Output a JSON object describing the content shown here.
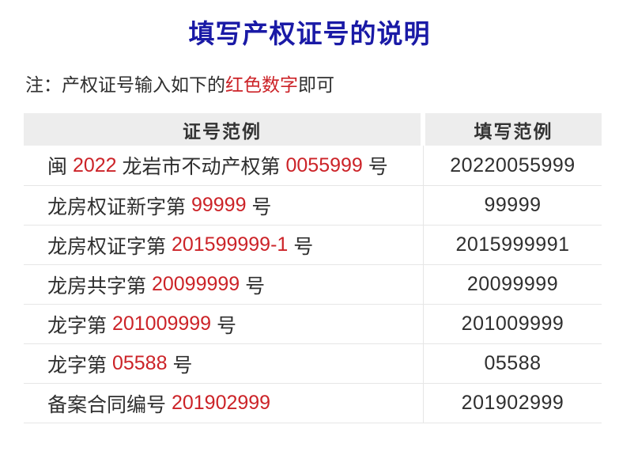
{
  "title": "填写产权证号的说明",
  "note": {
    "prefix": "注：产权证号输入如下的",
    "highlight": "红色数字",
    "suffix": "即可"
  },
  "colors": {
    "title_navy": "#1a1aa6",
    "highlight_red": "#cc2328",
    "body_text": "#2f2f2f",
    "header_background": "#ededed",
    "table_border": "#e6e6e6"
  },
  "table": {
    "headers": [
      "证号范例",
      "填写范例"
    ],
    "rows": [
      {
        "example": [
          "闽 ",
          "2022",
          " 龙岩市不动产权第 ",
          "0055999",
          " 号"
        ],
        "fill": "20220055999"
      },
      {
        "example": [
          "龙房权证新字第 ",
          "99999",
          " 号"
        ],
        "fill": "99999"
      },
      {
        "example": [
          "龙房权证字第 ",
          "201599999-1",
          " 号"
        ],
        "fill": "2015999991"
      },
      {
        "example": [
          "龙房共字第 ",
          "20099999",
          " 号"
        ],
        "fill": "20099999"
      },
      {
        "example": [
          "龙字第 ",
          "201009999",
          " 号"
        ],
        "fill": "201009999"
      },
      {
        "example": [
          "龙字第 ",
          "05588",
          " 号"
        ],
        "fill": "05588"
      },
      {
        "example": [
          "备案合同编号 ",
          "201902999"
        ],
        "fill": "201902999"
      }
    ]
  }
}
